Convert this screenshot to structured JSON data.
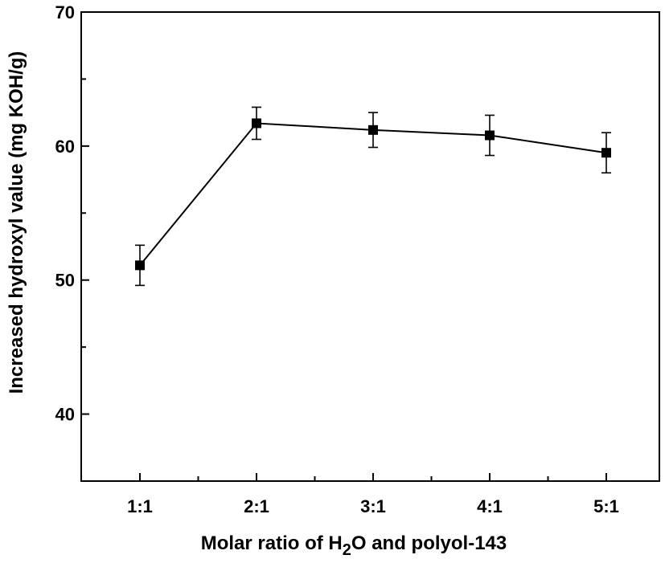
{
  "chart_data": {
    "type": "line",
    "xlabel_parts": [
      "Molar ratio of H",
      "2",
      "O and polyol-143"
    ],
    "ylabel": "Increased hydroxyl value (mg KOH/g)",
    "categories": [
      "1:1",
      "2:1",
      "3:1",
      "4:1",
      "5:1"
    ],
    "series": [
      {
        "values": [
          51.1,
          61.7,
          61.2,
          60.8,
          59.5
        ],
        "errors": [
          1.5,
          1.2,
          1.3,
          1.5,
          1.5
        ]
      }
    ],
    "ylim": [
      35,
      70
    ],
    "yticks": [
      40,
      50,
      60,
      70
    ],
    "grid": false,
    "marker": "square",
    "color": "#000000"
  }
}
